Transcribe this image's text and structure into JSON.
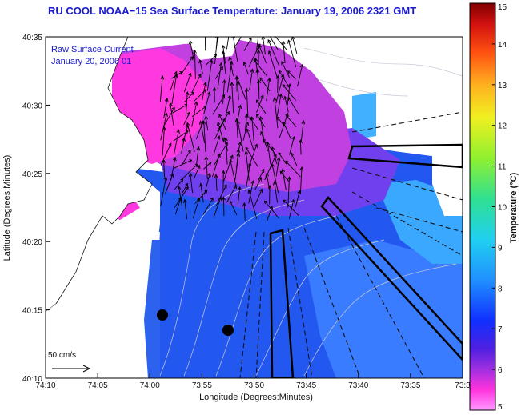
{
  "title": "RU COOL  NOAA−15  Sea Surface Temperature:  January 19, 2006 2321 GMT",
  "legend": {
    "line1": "Raw Surface Current",
    "line2": "January 20, 2006 01"
  },
  "scale_label": "50 cm/s",
  "axes": {
    "xlabel": "Longitude (Degrees:Minutes)",
    "ylabel": "Latitude (Degrees:Minutes)",
    "x_ticks": [
      "74:10",
      "74:05",
      "74:00",
      "73:55",
      "73:50",
      "73:45",
      "73:40",
      "73:35",
      "73:3"
    ],
    "y_ticks": [
      "40:35",
      "40:30",
      "40:25",
      "40:20",
      "40:15",
      "40:10"
    ]
  },
  "colorbar": {
    "label": "Temperature (°C)",
    "ticks": [
      "15",
      "14",
      "13",
      "12",
      "11",
      "10",
      "9",
      "8",
      "7",
      "6",
      "5"
    ],
    "min": 5,
    "max": 15
  },
  "colors": {
    "warm_pink": "#ff33dd",
    "magenta": "#c040e0",
    "violet": "#7a3cf0",
    "blue": "#2050f0",
    "mid_blue": "#3070ff",
    "cyan": "#30b0ff",
    "land": "#ffffff",
    "title": "#1a1ad0"
  }
}
